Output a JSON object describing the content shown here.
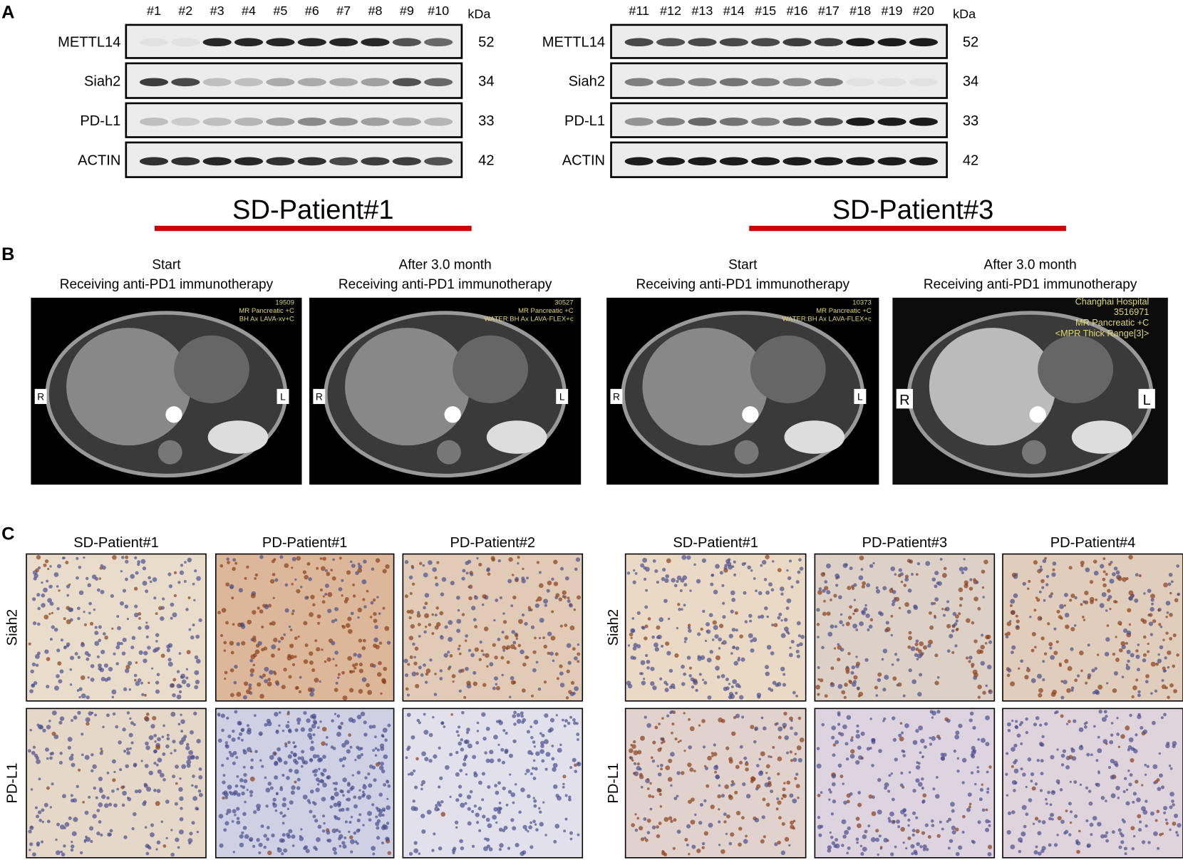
{
  "panel_a": {
    "label": "A",
    "blots": [
      {
        "lanes": [
          "#1",
          "#2",
          "#3",
          "#4",
          "#5",
          "#6",
          "#7",
          "#8",
          "#9",
          "#10"
        ],
        "unit": "kDa",
        "rows": [
          {
            "protein": "METTL14",
            "kda": "52"
          },
          {
            "protein": "Siah2",
            "kda": "34"
          },
          {
            "protein": "PD-L1",
            "kda": "33"
          },
          {
            "protein": "ACTIN",
            "kda": "42"
          }
        ],
        "patient": "SD-Patient#1"
      },
      {
        "lanes": [
          "#11",
          "#12",
          "#13",
          "#14",
          "#15",
          "#16",
          "#17",
          "#18",
          "#19",
          "#20"
        ],
        "unit": "kDa",
        "rows": [
          {
            "protein": "METTL14",
            "kda": "52"
          },
          {
            "protein": "Siah2",
            "kda": "34"
          },
          {
            "protein": "PD-L1",
            "kda": "33"
          },
          {
            "protein": "ACTIN",
            "kda": "42"
          }
        ],
        "patient": "SD-Patient#3"
      }
    ]
  },
  "panel_b": {
    "label": "B",
    "scans": [
      {
        "title": [
          "Start",
          "Receiving anti-PD1 immunotherapy"
        ],
        "overlay": [
          "19509",
          "MR Pancreatic +C",
          "BH Ax LAVA-xv+C"
        ],
        "left": "R",
        "right": "L"
      },
      {
        "title": [
          "After 3.0 month",
          "Receiving anti-PD1 immunotherapy"
        ],
        "overlay": [
          "30527",
          "MR Pancreatic +C",
          "WATER:BH Ax LAVA-FLEX+c"
        ],
        "left": "R",
        "right": "L"
      },
      {
        "title": [
          "Start",
          "Receiving anti-PD1 immunotherapy"
        ],
        "overlay": [
          "10373",
          "MR Pancreatic +C",
          "WATER:BH Ax LAVA-FLEX+c"
        ],
        "left": "R",
        "right": "L"
      },
      {
        "title": [
          "After 3.0 month",
          "Receiving anti-PD1 immunotherapy"
        ],
        "overlay": [
          "Changhai Hospital",
          "3516971",
          "MR Pancreatic +C",
          "<MPR Thick Range[3]>"
        ],
        "left": "R",
        "right": "L"
      }
    ]
  },
  "panel_c": {
    "label": "C",
    "groups": [
      {
        "columns": [
          "SD-Patient#1",
          "PD-Patient#1",
          "PD-Patient#2"
        ],
        "rows": [
          "Siah2",
          "PD-L1"
        ]
      },
      {
        "columns": [
          "SD-Patient#1",
          "PD-Patient#3",
          "PD-Patient#4"
        ],
        "rows": [
          "Siah2",
          "PD-L1"
        ]
      }
    ]
  }
}
